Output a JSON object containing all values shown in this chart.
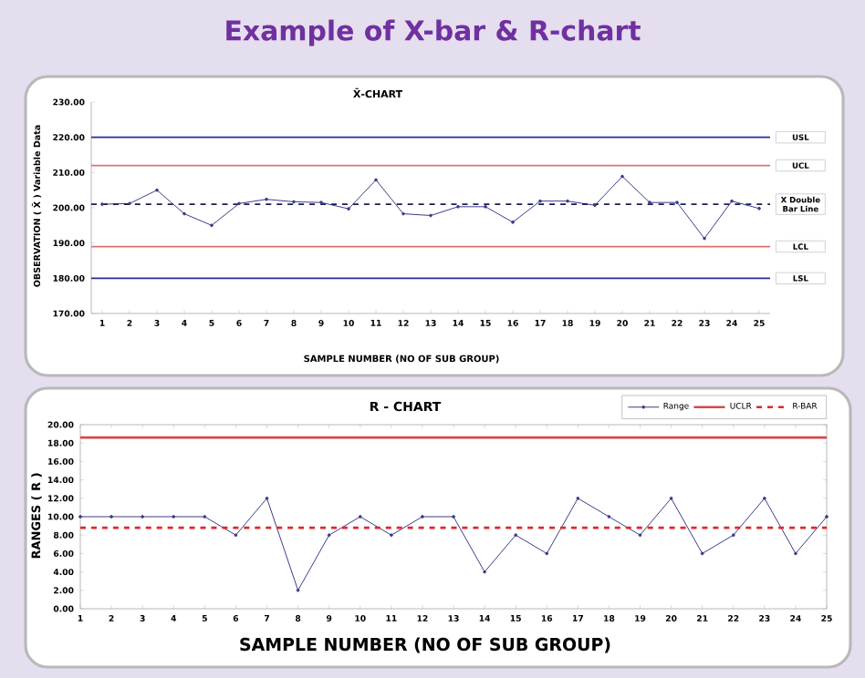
{
  "chart_data": [
    {
      "type": "line",
      "title": "Example of X-bar & R-chart",
      "subtitle": "X̄-CHART",
      "xlabel": "SAMPLE NUMBER (NO OF SUB GROUP)",
      "ylabel": "OBSERVATION ( X̄ )  Variable Data",
      "x": [
        1,
        2,
        3,
        4,
        5,
        6,
        7,
        8,
        9,
        10,
        11,
        12,
        13,
        14,
        15,
        16,
        17,
        18,
        19,
        20,
        21,
        22,
        23,
        24,
        25
      ],
      "values": [
        201.0,
        201.2,
        205.0,
        198.3,
        195.0,
        201.2,
        202.4,
        201.7,
        201.5,
        199.7,
        207.9,
        198.3,
        197.8,
        200.3,
        200.3,
        195.9,
        201.9,
        201.9,
        200.7,
        208.9,
        201.5,
        201.5,
        191.3,
        201.9,
        199.8
      ],
      "color": "#3c3c8c",
      "marker": "circle",
      "xlim": [
        0.6,
        25.4
      ],
      "xticks": [
        1,
        2,
        3,
        4,
        5,
        6,
        7,
        8,
        9,
        10,
        11,
        12,
        13,
        14,
        15,
        16,
        17,
        18,
        19,
        20,
        21,
        22,
        23,
        24,
        25
      ],
      "ylim": [
        170,
        230
      ],
      "yticks": [
        {
          "value": 170,
          "label": "170.00"
        },
        {
          "value": 180,
          "label": "180.00"
        },
        {
          "value": 190,
          "label": "190.00"
        },
        {
          "value": 200,
          "label": "200.00"
        },
        {
          "value": 210,
          "label": "210.00"
        },
        {
          "value": 220,
          "label": "220.00"
        },
        {
          "value": 230,
          "label": "230.00"
        }
      ],
      "ref_lines": [
        {
          "axis": "y",
          "value": 220,
          "label": "USL",
          "color": "#2b2b9c",
          "line_style": "solid"
        },
        {
          "axis": "y",
          "value": 212,
          "label": "UCL",
          "color": "#e07070",
          "line_style": "solid"
        },
        {
          "axis": "y",
          "value": 201,
          "label": "X Double Bar Line",
          "color": "#1c1c5c",
          "line_style": "dashed"
        },
        {
          "axis": "y",
          "value": 189,
          "label": "LCL",
          "color": "#e07070",
          "line_style": "solid"
        },
        {
          "axis": "y",
          "value": 180,
          "label": "LSL",
          "color": "#2b2b9c",
          "line_style": "solid"
        }
      ]
    },
    {
      "type": "line",
      "title": "R - CHART",
      "xlabel": "SAMPLE NUMBER (NO OF SUB GROUP)",
      "ylabel": "RANGES ( R )",
      "x": [
        1,
        2,
        3,
        4,
        5,
        6,
        7,
        8,
        9,
        10,
        11,
        12,
        13,
        14,
        15,
        16,
        17,
        18,
        19,
        20,
        21,
        22,
        23,
        24,
        25
      ],
      "series": [
        {
          "name": "Range",
          "color": "#3c3c8c",
          "values": [
            10,
            10,
            10,
            10,
            10,
            8,
            12,
            2,
            8,
            10,
            8,
            10,
            10,
            4,
            8,
            6,
            12,
            10,
            8,
            12,
            6,
            8,
            12,
            6,
            10
          ]
        }
      ],
      "marker": "circle",
      "legend": "top right",
      "xlim": [
        1,
        25
      ],
      "xticks": [
        1,
        2,
        3,
        4,
        5,
        6,
        7,
        8,
        9,
        10,
        11,
        12,
        13,
        14,
        15,
        16,
        17,
        18,
        19,
        20,
        21,
        22,
        23,
        24,
        25
      ],
      "ylim": [
        0,
        20
      ],
      "yticks": [
        {
          "value": 0,
          "label": "0.00"
        },
        {
          "value": 2,
          "label": "2.00"
        },
        {
          "value": 4,
          "label": "4.00"
        },
        {
          "value": 6,
          "label": "6.00"
        },
        {
          "value": 8,
          "label": "8.00"
        },
        {
          "value": 10,
          "label": "10.00"
        },
        {
          "value": 12,
          "label": "12.00"
        },
        {
          "value": 14,
          "label": "14.00"
        },
        {
          "value": 16,
          "label": "16.00"
        },
        {
          "value": 18,
          "label": "18.00"
        },
        {
          "value": 20,
          "label": "20.00"
        }
      ],
      "ref_lines": [
        {
          "axis": "y",
          "value": 18.6,
          "label": "UCLR",
          "color": "#d94848",
          "line_style": "solid"
        },
        {
          "axis": "y",
          "value": 8.8,
          "label": "R-BAR",
          "color": "#e02828",
          "line_style": "dashed"
        }
      ]
    }
  ]
}
